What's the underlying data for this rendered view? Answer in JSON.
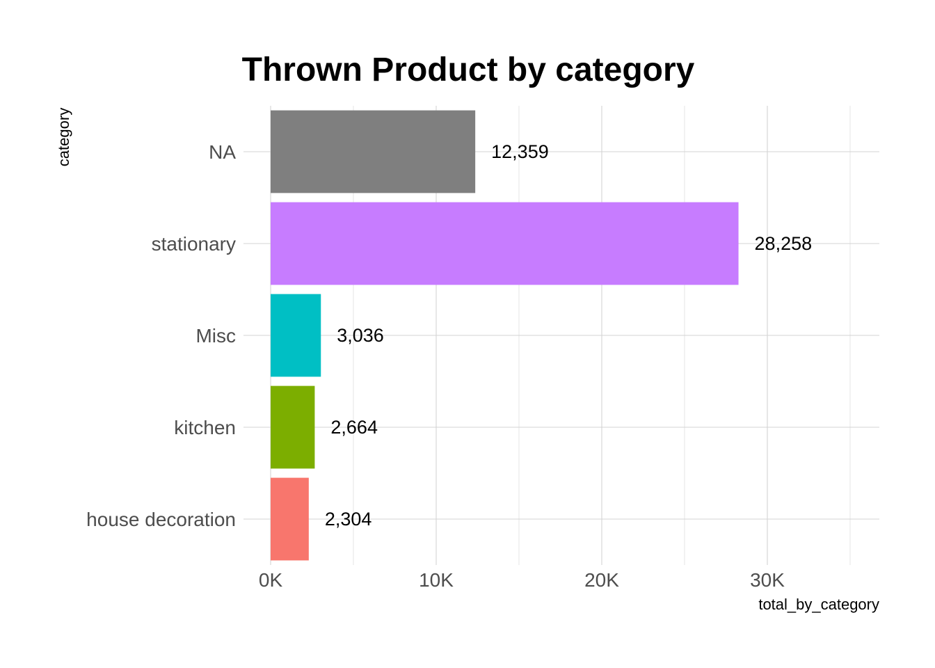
{
  "chart_data": {
    "type": "bar",
    "orientation": "horizontal",
    "title": "Thrown Product by category",
    "xlabel": "total_by_category",
    "ylabel": "category",
    "categories": [
      "house decoration",
      "kitchen",
      "Misc",
      "stationary",
      "NA"
    ],
    "values": [
      2304,
      2664,
      3036,
      28258,
      12359
    ],
    "value_labels": [
      "2,304",
      "2,664",
      "3,036",
      "28,258",
      "12,359"
    ],
    "colors": [
      "#F8766D",
      "#7CAE00",
      "#00BFC4",
      "#C77CFF",
      "#7F7F7F"
    ],
    "xlim": [
      0,
      36800
    ],
    "x_ticks": [
      0,
      10000,
      20000,
      30000
    ],
    "x_tick_labels": [
      "0K",
      "10K",
      "20K",
      "30K"
    ],
    "grid": true,
    "legend": "none"
  }
}
